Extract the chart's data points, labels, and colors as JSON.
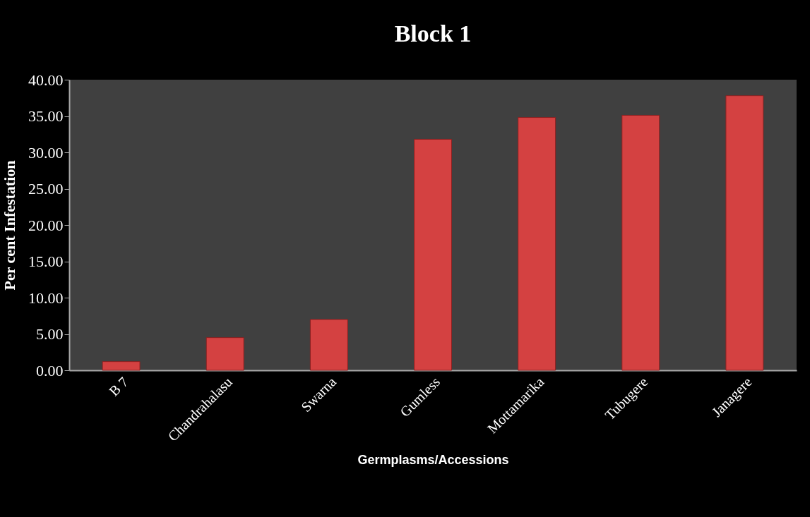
{
  "chart_data": {
    "type": "bar",
    "title": "Block 1",
    "xlabel": "Germplasms/Accessions",
    "ylabel": "Per  cent Infestation",
    "categories": [
      "B 7",
      "Chandrahalasu",
      "Swarna",
      "Gumless",
      "Mottamarika",
      "Tubugere",
      "Janagere"
    ],
    "values": [
      1.2,
      4.5,
      7.0,
      31.8,
      34.8,
      35.1,
      37.8
    ],
    "color": "#d44141",
    "ylim": [
      0,
      40
    ],
    "yticks": [
      {
        "value": 0,
        "label": "0.00"
      },
      {
        "value": 5,
        "label": "5.00"
      },
      {
        "value": 10,
        "label": "10.00"
      },
      {
        "value": 15,
        "label": "15.00"
      },
      {
        "value": 20,
        "label": "20.00"
      },
      {
        "value": 25,
        "label": "25.00"
      },
      {
        "value": 30,
        "label": "30.00"
      },
      {
        "value": 35,
        "label": "35.00"
      },
      {
        "value": 40,
        "label": "40.00"
      }
    ],
    "grid": false,
    "legend": false
  }
}
